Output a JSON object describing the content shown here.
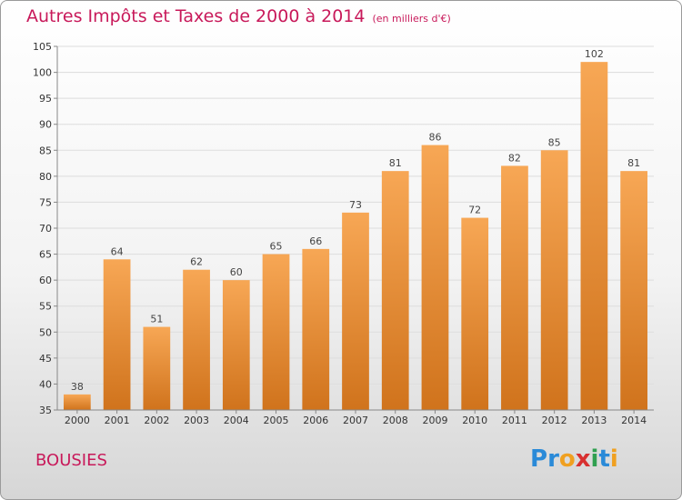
{
  "title": "Autres Impôts et Taxes de 2000 à 2014",
  "unit": "(en milliers d'€)",
  "commune": "BOUSIES",
  "logo": {
    "text": "Proxiti",
    "letters": [
      {
        "ch": "P",
        "color": "#2a8ad8"
      },
      {
        "ch": "r",
        "color": "#2a8ad8"
      },
      {
        "ch": "o",
        "color": "#f0a020"
      },
      {
        "ch": "x",
        "color": "#d83030"
      },
      {
        "ch": "i",
        "color": "#30a050"
      },
      {
        "ch": "t",
        "color": "#2a8ad8"
      },
      {
        "ch": "i",
        "color": "#f0a020"
      }
    ]
  },
  "colors": {
    "title": "#c8195a",
    "bar_top": "#f7a755",
    "bar_bottom": "#d0731c",
    "grid": "#dddddd"
  },
  "chart_data": {
    "type": "bar",
    "categories": [
      "2000",
      "2001",
      "2002",
      "2003",
      "2004",
      "2005",
      "2006",
      "2007",
      "2008",
      "2009",
      "2010",
      "2011",
      "2012",
      "2013",
      "2014"
    ],
    "values": [
      38,
      64,
      51,
      62,
      60,
      65,
      66,
      73,
      81,
      86,
      72,
      82,
      85,
      102,
      81
    ],
    "ylim": [
      35,
      105
    ],
    "yticks": [
      35,
      40,
      45,
      50,
      55,
      60,
      65,
      70,
      75,
      80,
      85,
      90,
      95,
      100,
      105
    ],
    "grid": true,
    "title": "Autres Impôts et Taxes de 2000 à 2014",
    "ylabel": "(en milliers d'€)",
    "xlabel": ""
  }
}
